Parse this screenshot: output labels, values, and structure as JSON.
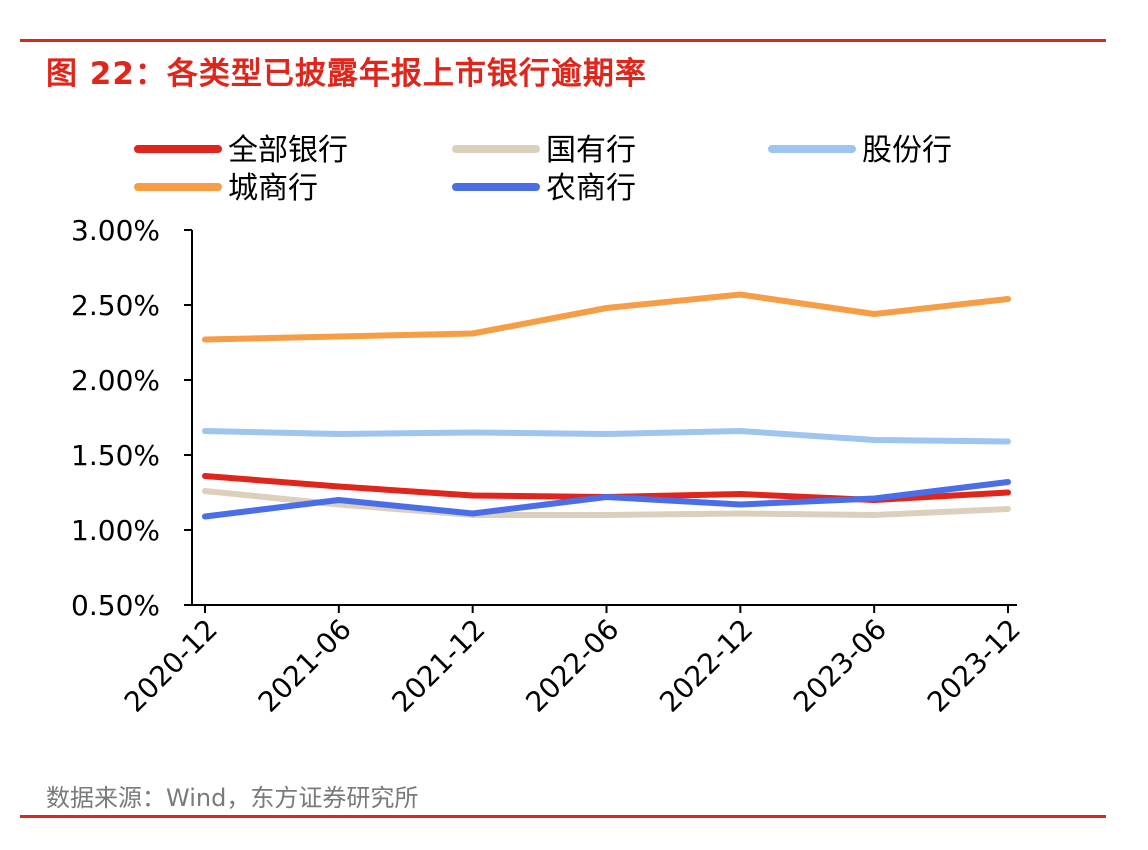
{
  "figure": {
    "title": "图 22：各类型已披露年报上市银行逾期率",
    "source": "数据来源：Wind，东方证券研究所",
    "accent_color": "#e0251b"
  },
  "chart_data": {
    "type": "line",
    "title": "图 22：各类型已披露年报上市银行逾期率",
    "xlabel": "",
    "ylabel": "",
    "x": [
      "2020-12",
      "2021-06",
      "2021-12",
      "2022-06",
      "2022-12",
      "2023-06",
      "2023-12"
    ],
    "y_ticks": [
      "3.00%",
      "2.50%",
      "2.00%",
      "1.50%",
      "1.00%",
      "0.50%"
    ],
    "y_tick_values": [
      3.0,
      2.5,
      2.0,
      1.5,
      1.0,
      0.5
    ],
    "ylim": [
      0.5,
      3.0
    ],
    "grid": false,
    "legend_position": "top",
    "series": [
      {
        "name": "全部银行",
        "color": "#e0251b",
        "values": [
          1.36,
          1.29,
          1.23,
          1.22,
          1.24,
          1.2,
          1.25
        ]
      },
      {
        "name": "国有行",
        "color": "#dcd0bd",
        "values": [
          1.26,
          1.17,
          1.1,
          1.1,
          1.11,
          1.1,
          1.14
        ]
      },
      {
        "name": "股份行",
        "color": "#9ec5f0",
        "values": [
          1.66,
          1.64,
          1.65,
          1.64,
          1.66,
          1.6,
          1.59
        ]
      },
      {
        "name": "城商行",
        "color": "#f79d45",
        "values": [
          2.27,
          2.29,
          2.31,
          2.48,
          2.57,
          2.44,
          2.54
        ]
      },
      {
        "name": "农商行",
        "color": "#4a6de8",
        "values": [
          1.09,
          1.2,
          1.11,
          1.22,
          1.17,
          1.21,
          1.32
        ]
      }
    ]
  }
}
